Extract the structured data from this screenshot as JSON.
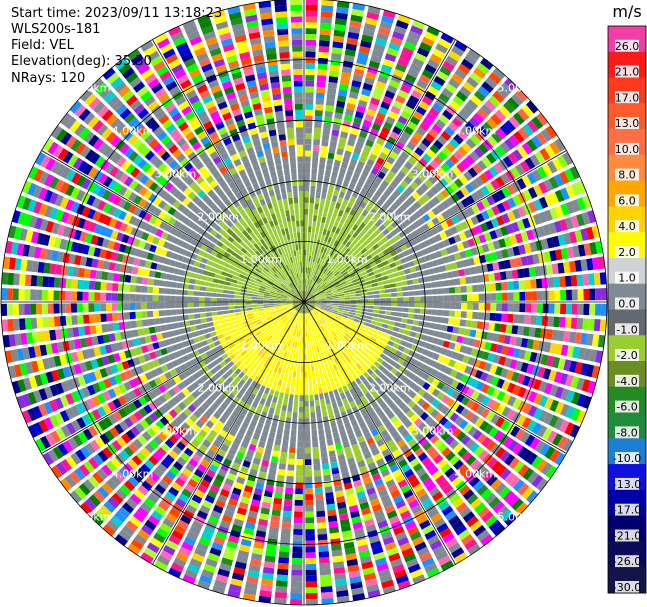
{
  "header": {
    "start_time": "Start time: 2023/09/11 13:18:23",
    "instrument": "WLS200s-181",
    "field": "Field: VEL",
    "elevation": "Elevation(deg): 35.30",
    "nrays": "NRays: 120"
  },
  "chart_data": {
    "type": "heatmap",
    "subtype": "ppi-polar",
    "unit_label": "m/s",
    "rings_km": [
      1.0,
      2.0,
      3.0,
      4.0,
      5.0
    ],
    "ring_labels": [
      "1.00km",
      "2.00km",
      "3.00km",
      "4.00km",
      "5.00km"
    ],
    "colorbar_ticks": [
      26.0,
      21.0,
      17.0,
      13.0,
      10.0,
      8.0,
      6.0,
      4.0,
      2.0,
      1.0,
      0.0,
      -1.0,
      -2.0,
      -4.0,
      -6.0,
      -8.0,
      -10.0,
      -13.0,
      -17.0,
      -21.0,
      -26.0,
      -30.0
    ],
    "colorbar_tick_labels": [
      "26.0",
      "21.0",
      "17.0",
      "13.0",
      "10.0",
      "8.0",
      "6.0",
      "4.0",
      "2.0",
      "1.0",
      "0.0",
      "-1.0",
      "-2.0",
      "-4.0",
      "-6.0",
      "-8.0",
      "-10.0",
      "-13.0",
      "-17.0",
      "-21.0",
      "-26.0",
      "-30.0"
    ],
    "colorbar_colors": [
      "#f23fa6",
      "#ff1a1a",
      "#ff3b1f",
      "#ff5a2c",
      "#ff6f45",
      "#ff8a40",
      "#ffa600",
      "#ffd200",
      "#fffc00",
      "#cfd3d3",
      "#7f8a94",
      "#63696f",
      "#9acd32",
      "#6b8e23",
      "#228b22",
      "#1e8c3a",
      "#1e7ed6",
      "#1010e0",
      "#0000a8",
      "#00006e",
      "#0a0a5a",
      "#14144a"
    ],
    "nrays": 120,
    "max_range_km": 5.0
  }
}
